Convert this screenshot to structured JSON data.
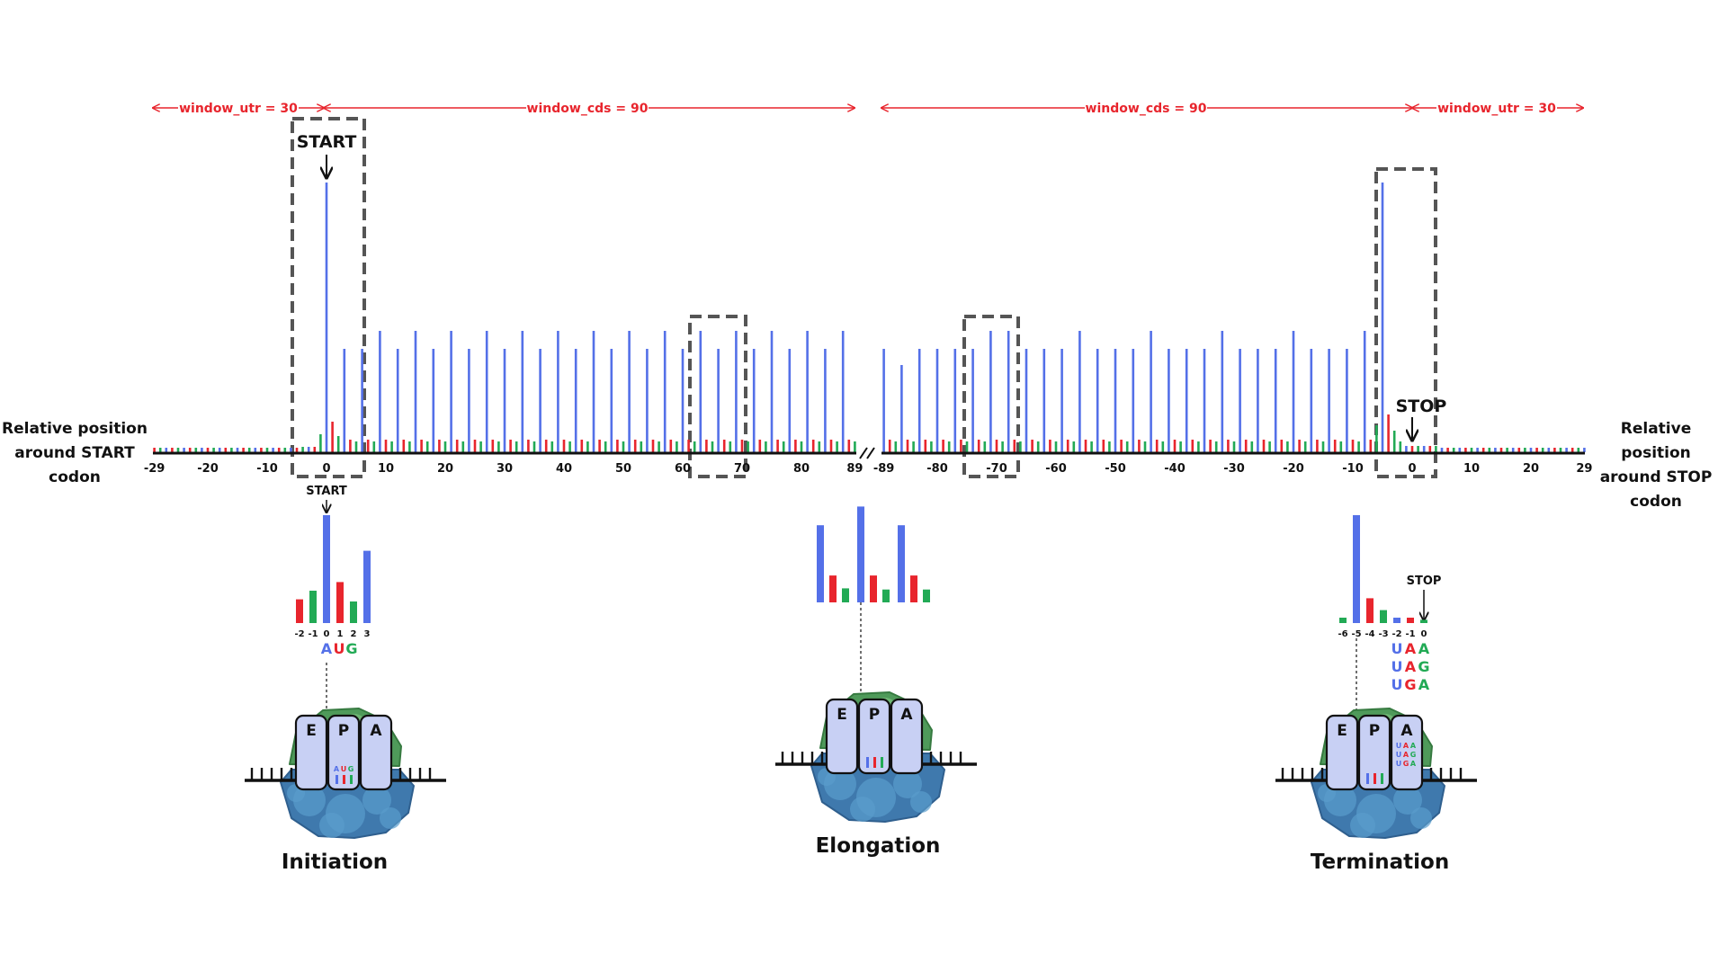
{
  "windows": [
    {
      "label": "window_utr = 30"
    },
    {
      "label": "window_cds = 90"
    },
    {
      "label": "window_cds = 90"
    },
    {
      "label": "window_utr = 30"
    }
  ],
  "markers": {
    "start": "START",
    "stop": "STOP"
  },
  "side_labels": {
    "left": [
      "Relative position",
      "around START",
      "codon"
    ],
    "right": [
      "Relative position",
      "around STOP",
      "codon"
    ]
  },
  "axis_left_ticks": [
    "-29",
    "-20",
    "-10",
    "0",
    "10",
    "20",
    "30",
    "40",
    "50",
    "60",
    "70",
    "80",
    "89"
  ],
  "axis_right_ticks": [
    "-89",
    "-80",
    "-70",
    "-60",
    "-50",
    "-40",
    "-30",
    "-20",
    "-10",
    "0",
    "10",
    "20",
    "29"
  ],
  "colors": {
    "frame0": "#5470e8",
    "frame1": "#e8252d",
    "frame2": "#22aa55",
    "window": "#e8252d",
    "box": "#555555",
    "ribosome": "#4d86b8",
    "site": "#c8d0f4"
  },
  "insets": {
    "initiation": {
      "start_label": "START",
      "ticks": [
        "-2",
        "-1",
        "0",
        "1",
        "2",
        "3"
      ],
      "values": [
        0.22,
        0.3,
        1.0,
        0.38,
        0.2,
        0.67
      ],
      "codon": [
        "A",
        "U",
        "G"
      ]
    },
    "elongation": {
      "values": [
        0.66,
        0.23,
        0.12,
        0.82,
        0.23,
        0.11,
        0.66,
        0.23,
        0.11
      ]
    },
    "termination": {
      "stop_label": "STOP",
      "ticks": [
        "-6",
        "-5",
        "-4",
        "-3",
        "-2",
        "-1",
        "0"
      ],
      "values": [
        0.05,
        1.0,
        0.23,
        0.12,
        0.05,
        0.05,
        0.03
      ],
      "codons": [
        [
          "U",
          "A",
          "A"
        ],
        [
          "U",
          "A",
          "G"
        ],
        [
          "U",
          "G",
          "A"
        ]
      ]
    }
  },
  "ribosome": {
    "sites": [
      "E",
      "P",
      "A"
    ]
  },
  "stages": [
    "Initiation",
    "Elongation",
    "Termination"
  ]
}
